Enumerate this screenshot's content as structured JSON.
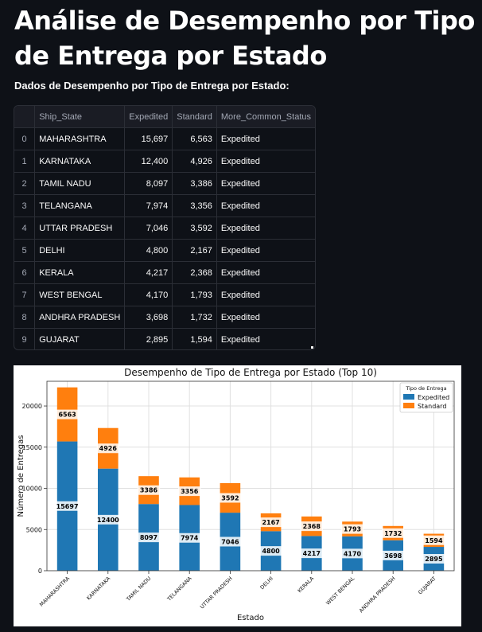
{
  "page": {
    "title": "Análise de Desempenho por Tipo de Entrega por Estado",
    "subtitle": "Dados de Desempenho por Tipo de Entrega por Estado:"
  },
  "table": {
    "columns": [
      "",
      "Ship_State",
      "Expedited",
      "Standard",
      "More_Common_Status"
    ],
    "rows": [
      {
        "idx": "0",
        "state": "MAHARASHTRA",
        "expedited": "15,697",
        "standard": "6,563",
        "status": "Expedited"
      },
      {
        "idx": "1",
        "state": "KARNATAKA",
        "expedited": "12,400",
        "standard": "4,926",
        "status": "Expedited"
      },
      {
        "idx": "2",
        "state": "TAMIL NADU",
        "expedited": "8,097",
        "standard": "3,386",
        "status": "Expedited"
      },
      {
        "idx": "3",
        "state": "TELANGANA",
        "expedited": "7,974",
        "standard": "3,356",
        "status": "Expedited"
      },
      {
        "idx": "4",
        "state": "UTTAR PRADESH",
        "expedited": "7,046",
        "standard": "3,592",
        "status": "Expedited"
      },
      {
        "idx": "5",
        "state": "DELHI",
        "expedited": "4,800",
        "standard": "2,167",
        "status": "Expedited"
      },
      {
        "idx": "6",
        "state": "KERALA",
        "expedited": "4,217",
        "standard": "2,368",
        "status": "Expedited"
      },
      {
        "idx": "7",
        "state": "WEST BENGAL",
        "expedited": "4,170",
        "standard": "1,793",
        "status": "Expedited"
      },
      {
        "idx": "8",
        "state": "ANDHRA PRADESH",
        "expedited": "3,698",
        "standard": "1,732",
        "status": "Expedited"
      },
      {
        "idx": "9",
        "state": "GUJARAT",
        "expedited": "2,895",
        "standard": "1,594",
        "status": "Expedited"
      }
    ]
  },
  "chart_data": {
    "type": "bar",
    "stacked": true,
    "title": "Desempenho de Tipo de Entrega por Estado (Top 10)",
    "xlabel": "Estado",
    "ylabel": "Número de Entregas",
    "categories": [
      "MAHARASHTRA",
      "KARNATAKA",
      "TAMIL NADU",
      "TELANGANA",
      "UTTAR PRADESH",
      "DELHI",
      "KERALA",
      "WEST BENGAL",
      "ANDHRA PRADESH",
      "GUJARAT"
    ],
    "series": [
      {
        "name": "Expedited",
        "values": [
          15697,
          12400,
          8097,
          7974,
          7046,
          4800,
          4217,
          4170,
          3698,
          2895
        ],
        "color": "#1f77b4"
      },
      {
        "name": "Standard",
        "values": [
          6563,
          4926,
          3386,
          3356,
          3592,
          2167,
          2368,
          1793,
          1732,
          1594
        ],
        "color": "#ff7f0e"
      }
    ],
    "ylim": [
      0,
      23000
    ],
    "yticks": [
      0,
      5000,
      10000,
      15000,
      20000
    ],
    "grid": true,
    "legend_title": "Tipo de Entrega",
    "legend_position": "top-right"
  }
}
